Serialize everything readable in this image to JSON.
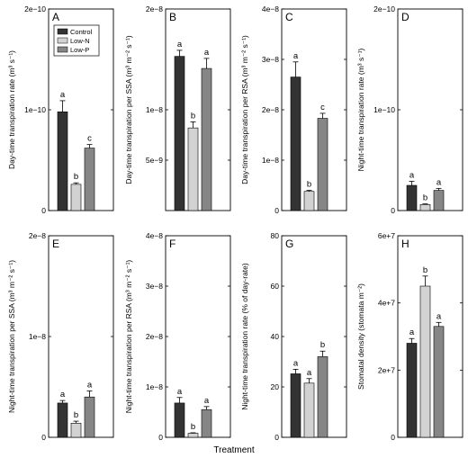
{
  "xlabel": "Treatment",
  "colors": {
    "Control": "#333333",
    "Low-N": "#d2d2d2",
    "Low-P": "#868686",
    "error": "#000000"
  },
  "legend": {
    "position": "top-left of panel A",
    "entries": [
      "Control",
      "Low-N",
      "Low-P"
    ]
  },
  "chart_data": [
    {
      "type": "bar",
      "label": "A",
      "ylabel": "Day-time transpiration rate (m³ s⁻¹)",
      "ylim": [
        0,
        2e-10
      ],
      "yticks": [
        "0",
        "1e−10",
        "2e−10"
      ],
      "yticks_at": [
        0,
        1e-10,
        2e-10
      ],
      "categories": [
        "Control",
        "Low-N",
        "Low-P"
      ],
      "values": [
        9.8e-11,
        2.6e-11,
        6.2e-11
      ],
      "errors": [
        1.1e-11,
        1.5e-12,
        3.5e-12
      ],
      "letters": [
        "a",
        "b",
        "c"
      ]
    },
    {
      "type": "bar",
      "label": "B",
      "ylabel": "Day-time transpiration per SSA (m³ m⁻² s⁻¹)",
      "ylim": [
        0,
        2e-08
      ],
      "yticks": [
        "5e−9",
        "1e−8",
        "2e−8"
      ],
      "yticks_at": [
        5e-09,
        1e-08,
        2e-08
      ],
      "categories": [
        "Control",
        "Low-N",
        "Low-P"
      ],
      "values": [
        1.53e-08,
        8.2e-09,
        1.41e-08
      ],
      "errors": [
        6e-10,
        6e-10,
        1e-09
      ],
      "letters": [
        "a",
        "b",
        "a"
      ]
    },
    {
      "type": "bar",
      "label": "C",
      "ylabel": "Day-time transpiration per RSA (m³ m⁻² s⁻¹)",
      "ylim": [
        0,
        4e-08
      ],
      "yticks": [
        "0",
        "1e−8",
        "2e−8",
        "3e−8",
        "4e−8"
      ],
      "yticks_at": [
        0,
        1e-08,
        2e-08,
        3e-08,
        4e-08
      ],
      "categories": [
        "Control",
        "Low-N",
        "Low-P"
      ],
      "values": [
        2.65e-08,
        3.8e-09,
        1.83e-08
      ],
      "errors": [
        3e-09,
        2e-10,
        1e-09
      ],
      "letters": [
        "a",
        "b",
        "c"
      ]
    },
    {
      "type": "bar",
      "label": "D",
      "ylabel": "Night-time transpiration rate (m³ s⁻¹)",
      "ylim": [
        0,
        2e-10
      ],
      "yticks": [
        "0",
        "1e−10",
        "2e−10"
      ],
      "yticks_at": [
        0,
        1e-10,
        2e-10
      ],
      "categories": [
        "Control",
        "Low-N",
        "Low-P"
      ],
      "values": [
        2.5e-11,
        6e-12,
        2e-11
      ],
      "errors": [
        4e-12,
        6e-13,
        2e-12
      ],
      "letters": [
        "a",
        "b",
        "a"
      ]
    },
    {
      "type": "bar",
      "label": "E",
      "ylabel": "Night-time transpiration per SSA (m³ m⁻² s⁻¹)",
      "ylim": [
        0,
        2e-08
      ],
      "yticks": [
        "0",
        "1e−8",
        "2e−8"
      ],
      "yticks_at": [
        0,
        1e-08,
        2e-08
      ],
      "categories": [
        "Control",
        "Low-N",
        "Low-P"
      ],
      "values": [
        3.4e-09,
        1.4e-09,
        4e-09
      ],
      "errors": [
        2.5e-10,
        2e-10,
        6e-10
      ],
      "letters": [
        "a",
        "b",
        "a"
      ]
    },
    {
      "type": "bar",
      "label": "F",
      "ylabel": "Night-time transpiration per RSA (m³ m⁻² s⁻¹)",
      "ylim": [
        0,
        4e-08
      ],
      "yticks": [
        "0",
        "1e−8",
        "2e−8",
        "3e−8",
        "4e−8"
      ],
      "yticks_at": [
        0,
        1e-08,
        2e-08,
        3e-08,
        4e-08
      ],
      "categories": [
        "Control",
        "Low-N",
        "Low-P"
      ],
      "values": [
        6.8e-09,
        8e-10,
        5.5e-09
      ],
      "errors": [
        1.1e-09,
        1e-10,
        6e-10
      ],
      "letters": [
        "a",
        "b",
        "a"
      ]
    },
    {
      "type": "bar",
      "label": "G",
      "ylabel": "Night-time transpiration rate (% of day-rate)",
      "ylim": [
        0,
        80
      ],
      "yticks": [
        "0",
        "20",
        "40",
        "60",
        "80"
      ],
      "yticks_at": [
        0,
        20,
        40,
        60,
        80
      ],
      "categories": [
        "Control",
        "Low-N",
        "Low-P"
      ],
      "values": [
        25.2,
        21.5,
        32
      ],
      "errors": [
        1.8,
        1.8,
        2.2
      ],
      "letters": [
        "a",
        "a",
        "b"
      ]
    },
    {
      "type": "bar",
      "label": "H",
      "ylabel": "Stomatal density (stomata m⁻²)",
      "ylim": [
        0,
        60000000.0
      ],
      "yticks": [
        "0",
        "2e+7",
        "4e+7",
        "6e+7"
      ],
      "yticks_at": [
        0,
        20000000.0,
        40000000.0,
        60000000.0
      ],
      "categories": [
        "Control",
        "Low-N",
        "Low-P"
      ],
      "values": [
        28000000.0,
        45000000.0,
        33000000.0
      ],
      "errors": [
        1400000.0,
        3000000.0,
        1200000.0
      ],
      "letters": [
        "a",
        "b",
        "a"
      ]
    }
  ]
}
